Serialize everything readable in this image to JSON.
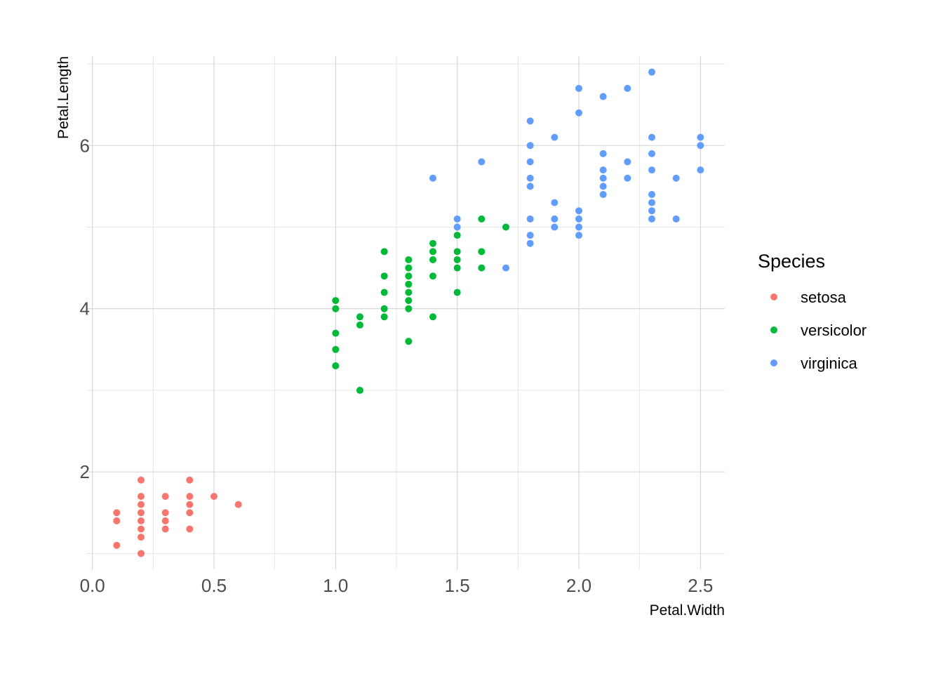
{
  "chart_data": {
    "type": "scatter",
    "xlabel": "Petal.Width",
    "ylabel": "Petal.Length",
    "xlim": [
      -0.025,
      2.6
    ],
    "ylim": [
      0.805,
      7.095
    ],
    "x_ticks": [
      0.0,
      0.5,
      1.0,
      1.5,
      2.0,
      2.5
    ],
    "x_tick_labels": [
      "0.0",
      "0.5",
      "1.0",
      "1.5",
      "2.0",
      "2.5"
    ],
    "y_ticks": [
      2,
      4,
      6
    ],
    "y_tick_labels": [
      "2",
      "4",
      "6"
    ],
    "grid": true,
    "legend": {
      "title": "Species",
      "position": "right"
    },
    "series": [
      {
        "name": "setosa",
        "color": "#F8766D",
        "points": [
          [
            0.1,
            1.1
          ],
          [
            0.1,
            1.4
          ],
          [
            0.1,
            1.5
          ],
          [
            0.2,
            1.0
          ],
          [
            0.2,
            1.2
          ],
          [
            0.2,
            1.3
          ],
          [
            0.2,
            1.4
          ],
          [
            0.2,
            1.5
          ],
          [
            0.2,
            1.6
          ],
          [
            0.2,
            1.7
          ],
          [
            0.2,
            1.9
          ],
          [
            0.3,
            1.3
          ],
          [
            0.3,
            1.4
          ],
          [
            0.3,
            1.5
          ],
          [
            0.3,
            1.7
          ],
          [
            0.4,
            1.3
          ],
          [
            0.4,
            1.5
          ],
          [
            0.4,
            1.6
          ],
          [
            0.4,
            1.7
          ],
          [
            0.4,
            1.9
          ],
          [
            0.5,
            1.7
          ],
          [
            0.6,
            1.6
          ]
        ]
      },
      {
        "name": "versicolor",
        "color": "#00BA38",
        "points": [
          [
            1.0,
            3.3
          ],
          [
            1.0,
            3.5
          ],
          [
            1.0,
            3.7
          ],
          [
            1.0,
            4.0
          ],
          [
            1.0,
            4.1
          ],
          [
            1.1,
            3.0
          ],
          [
            1.1,
            3.8
          ],
          [
            1.1,
            3.9
          ],
          [
            1.2,
            3.9
          ],
          [
            1.2,
            4.0
          ],
          [
            1.2,
            4.2
          ],
          [
            1.2,
            4.4
          ],
          [
            1.2,
            4.7
          ],
          [
            1.3,
            3.6
          ],
          [
            1.3,
            4.0
          ],
          [
            1.3,
            4.1
          ],
          [
            1.3,
            4.2
          ],
          [
            1.3,
            4.3
          ],
          [
            1.3,
            4.4
          ],
          [
            1.3,
            4.5
          ],
          [
            1.3,
            4.6
          ],
          [
            1.4,
            3.9
          ],
          [
            1.4,
            4.4
          ],
          [
            1.4,
            4.6
          ],
          [
            1.4,
            4.7
          ],
          [
            1.4,
            4.8
          ],
          [
            1.5,
            4.2
          ],
          [
            1.5,
            4.5
          ],
          [
            1.5,
            4.6
          ],
          [
            1.5,
            4.7
          ],
          [
            1.5,
            4.9
          ],
          [
            1.6,
            4.5
          ],
          [
            1.6,
            4.7
          ],
          [
            1.6,
            5.1
          ],
          [
            1.7,
            5.0
          ]
        ]
      },
      {
        "name": "virginica",
        "color": "#619CFF",
        "points": [
          [
            1.4,
            5.6
          ],
          [
            1.5,
            5.0
          ],
          [
            1.5,
            5.1
          ],
          [
            1.6,
            5.8
          ],
          [
            1.7,
            4.5
          ],
          [
            1.8,
            4.8
          ],
          [
            1.8,
            4.9
          ],
          [
            1.8,
            5.1
          ],
          [
            1.8,
            5.5
          ],
          [
            1.8,
            5.6
          ],
          [
            1.8,
            5.8
          ],
          [
            1.8,
            6.0
          ],
          [
            1.8,
            6.3
          ],
          [
            1.9,
            5.0
          ],
          [
            1.9,
            5.1
          ],
          [
            1.9,
            5.3
          ],
          [
            1.9,
            6.1
          ],
          [
            2.0,
            4.9
          ],
          [
            2.0,
            5.0
          ],
          [
            2.0,
            5.1
          ],
          [
            2.0,
            5.2
          ],
          [
            2.0,
            6.4
          ],
          [
            2.0,
            6.7
          ],
          [
            2.1,
            5.4
          ],
          [
            2.1,
            5.5
          ],
          [
            2.1,
            5.6
          ],
          [
            2.1,
            5.7
          ],
          [
            2.1,
            5.9
          ],
          [
            2.1,
            6.6
          ],
          [
            2.2,
            5.6
          ],
          [
            2.2,
            5.8
          ],
          [
            2.2,
            6.7
          ],
          [
            2.3,
            5.1
          ],
          [
            2.3,
            5.2
          ],
          [
            2.3,
            5.3
          ],
          [
            2.3,
            5.4
          ],
          [
            2.3,
            5.7
          ],
          [
            2.3,
            5.9
          ],
          [
            2.3,
            6.1
          ],
          [
            2.3,
            6.9
          ],
          [
            2.4,
            5.1
          ],
          [
            2.4,
            5.6
          ],
          [
            2.5,
            5.7
          ],
          [
            2.5,
            6.0
          ],
          [
            2.5,
            6.1
          ]
        ]
      }
    ]
  }
}
